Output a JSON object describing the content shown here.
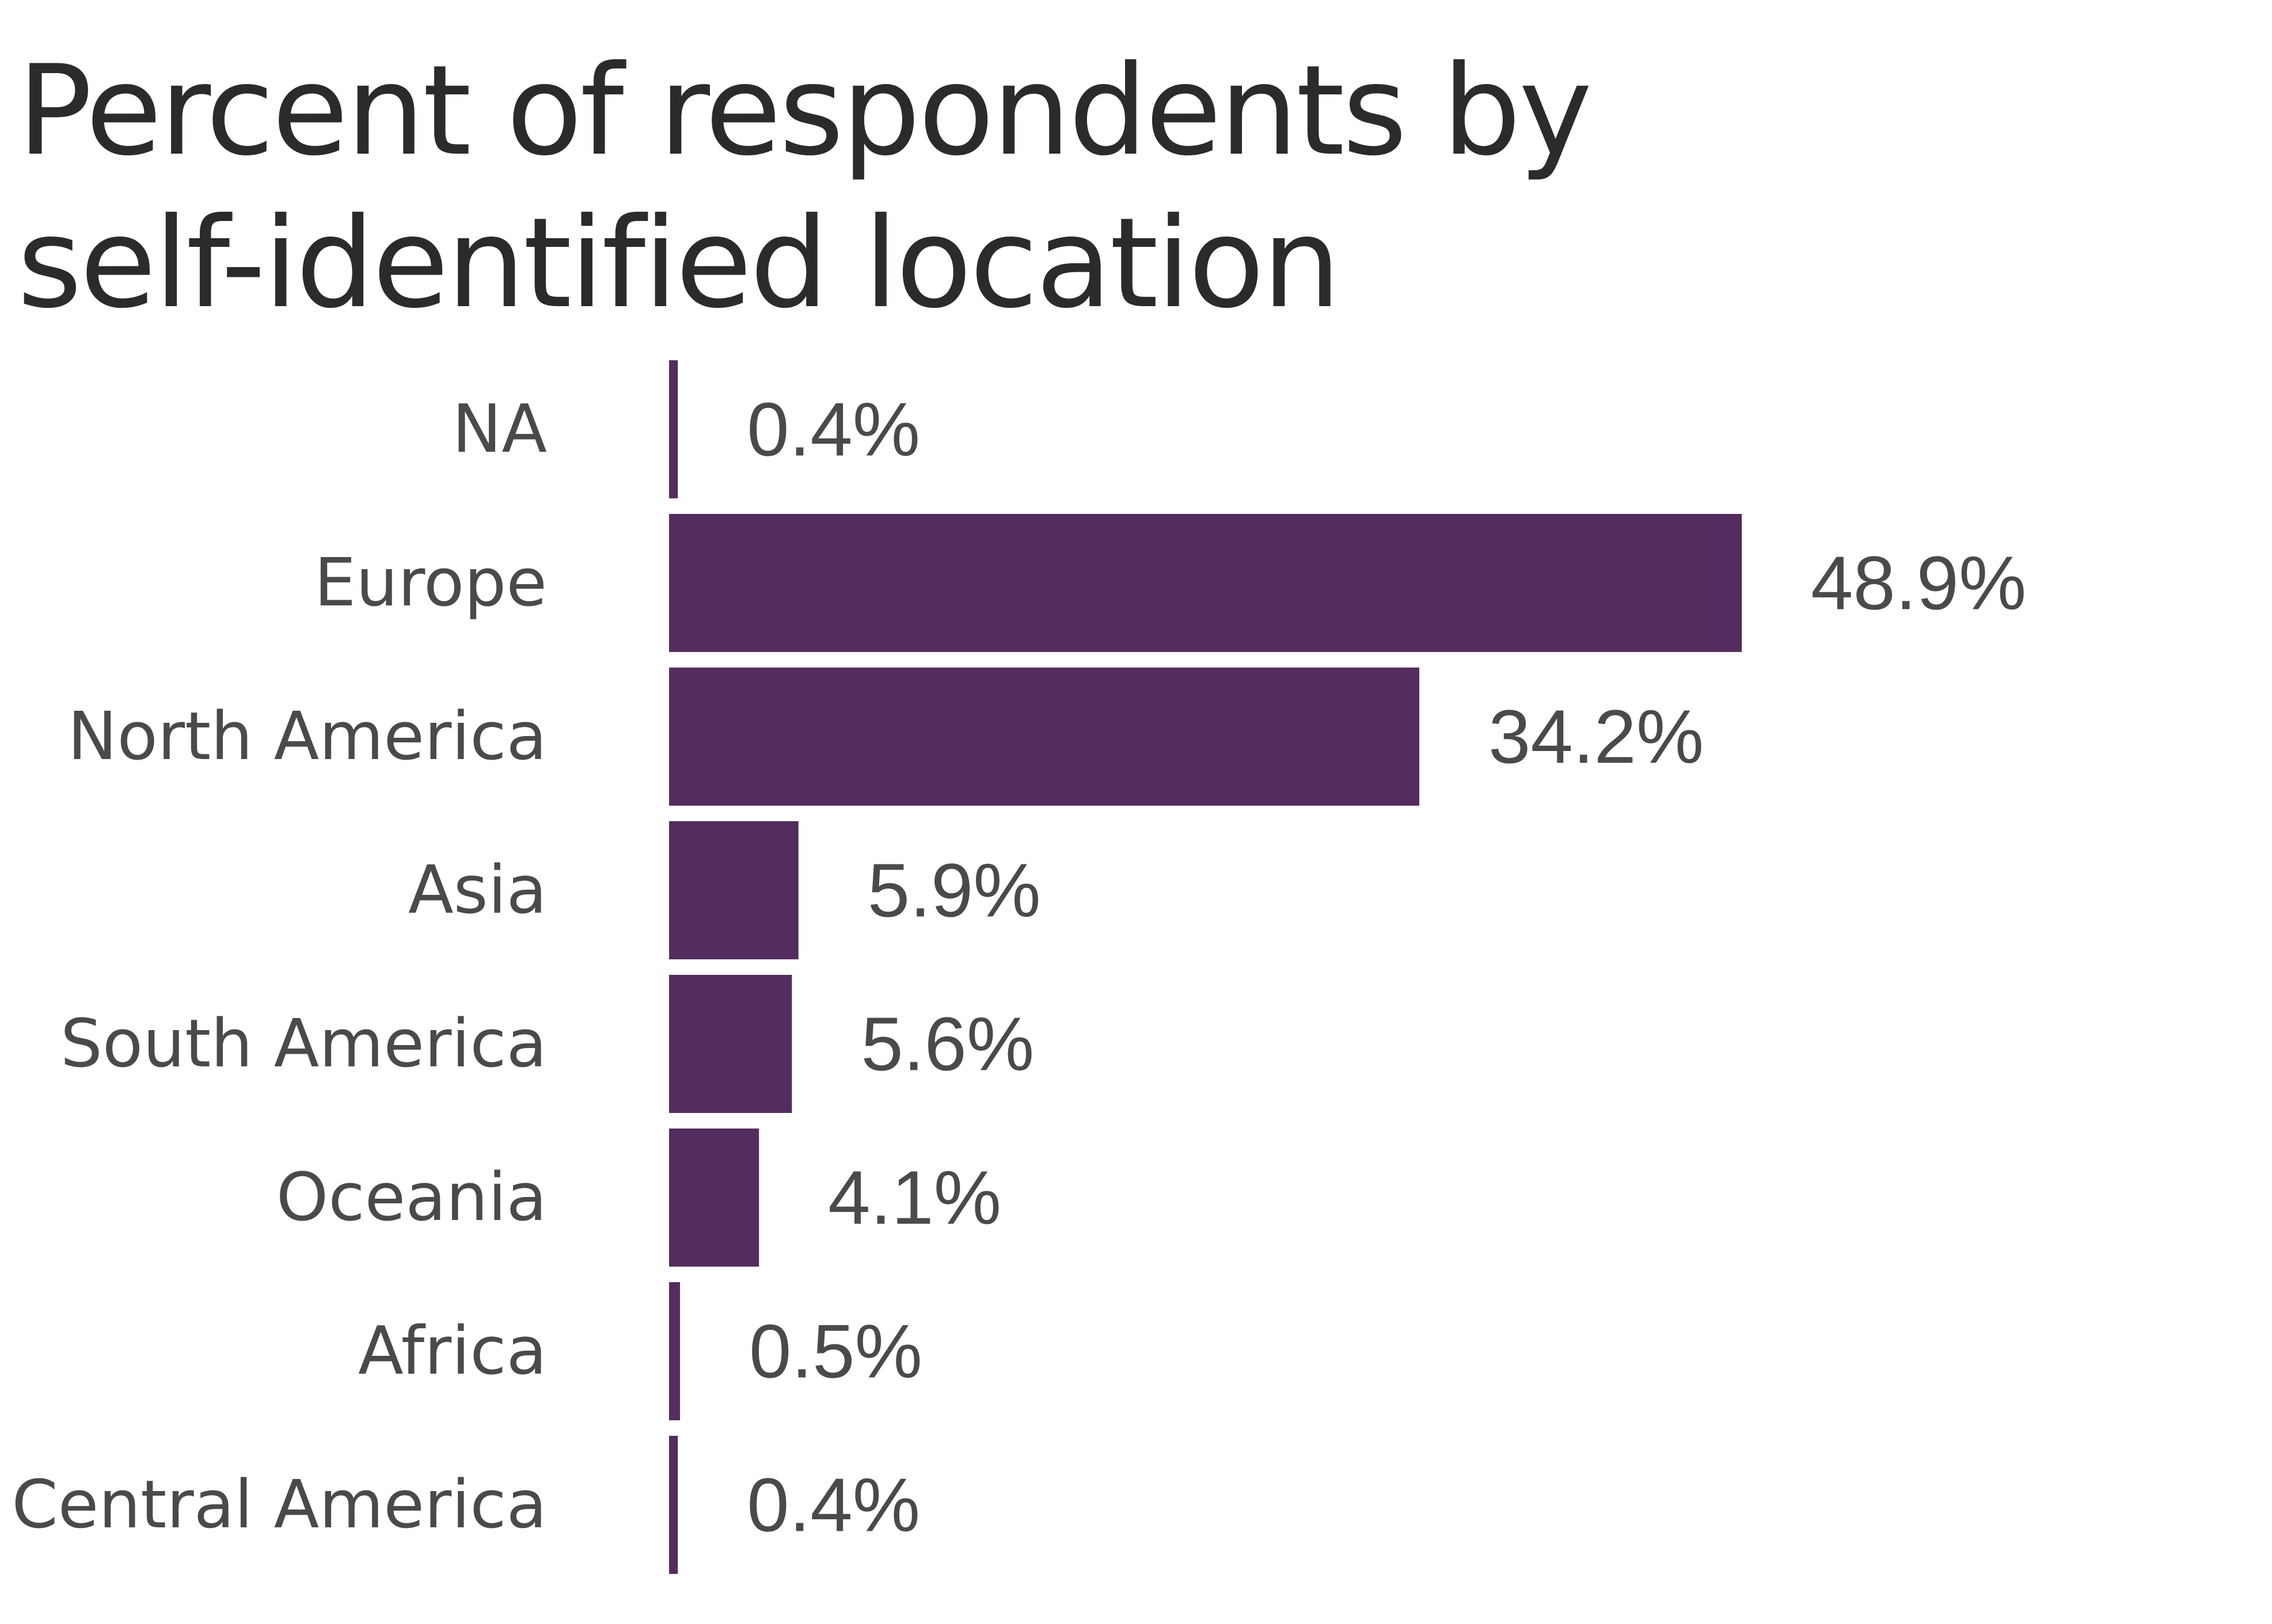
{
  "chart_data": {
    "type": "bar",
    "orientation": "horizontal",
    "title": "Percent of respondents by self-identified location",
    "categories": [
      "NA",
      "Europe",
      "North America",
      "Asia",
      "South America",
      "Oceania",
      "Africa",
      "Central America"
    ],
    "values": [
      0.4,
      48.9,
      34.2,
      5.9,
      5.6,
      4.1,
      0.5,
      0.4
    ],
    "value_labels": [
      "0.4%",
      "48.9%",
      "34.2%",
      "5.9%",
      "5.6%",
      "4.1%",
      "0.5%",
      "0.4%"
    ],
    "xlabel": "",
    "ylabel": "",
    "bar_color": "#532d5f",
    "grid": false,
    "legend": "none"
  }
}
